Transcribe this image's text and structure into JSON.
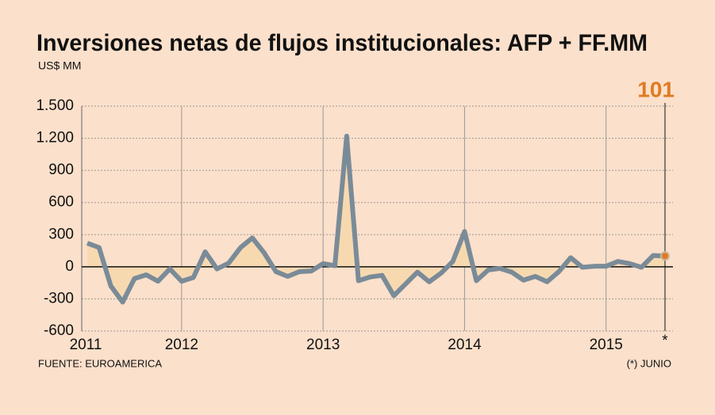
{
  "chart_data": {
    "type": "line",
    "title": "Inversiones netas de flujos institucionales: AFP + FF.MM",
    "subtitle": "US$ MM",
    "source": "FUENTE: EUROAMERICA",
    "note": "(*) JUNIO",
    "annotation": "101",
    "categories": [
      "2011",
      null,
      null,
      null,
      null,
      null,
      null,
      null,
      "2012",
      null,
      null,
      null,
      null,
      null,
      null,
      null,
      null,
      null,
      null,
      null,
      "2013",
      null,
      null,
      null,
      null,
      null,
      null,
      null,
      null,
      null,
      null,
      null,
      "2014",
      null,
      null,
      null,
      null,
      null,
      null,
      null,
      null,
      null,
      null,
      null,
      "2015",
      null,
      null,
      null,
      null,
      "*"
    ],
    "series": [
      {
        "name": "AFP + FF.MM",
        "color": "#7a8b98",
        "fill": "#f7d9b0",
        "highlight_color": "#e07b20",
        "values": [
          220,
          180,
          -180,
          -330,
          -110,
          -75,
          -135,
          -20,
          -135,
          -100,
          140,
          -20,
          35,
          180,
          270,
          130,
          -45,
          -90,
          -45,
          -40,
          30,
          10,
          1220,
          -130,
          -95,
          -80,
          -270,
          -160,
          -50,
          -140,
          -60,
          50,
          330,
          -130,
          -30,
          -15,
          -50,
          -125,
          -90,
          -140,
          -45,
          85,
          -5,
          5,
          5,
          50,
          30,
          -5,
          105,
          101
        ]
      }
    ],
    "ylim": [
      -600,
      1500
    ],
    "yticks": [
      {
        "value": 1500,
        "label": "1.500"
      },
      {
        "value": 1200,
        "label": "1.200"
      },
      900,
      600,
      300,
      0,
      -300,
      -600
    ],
    "grid": true
  }
}
